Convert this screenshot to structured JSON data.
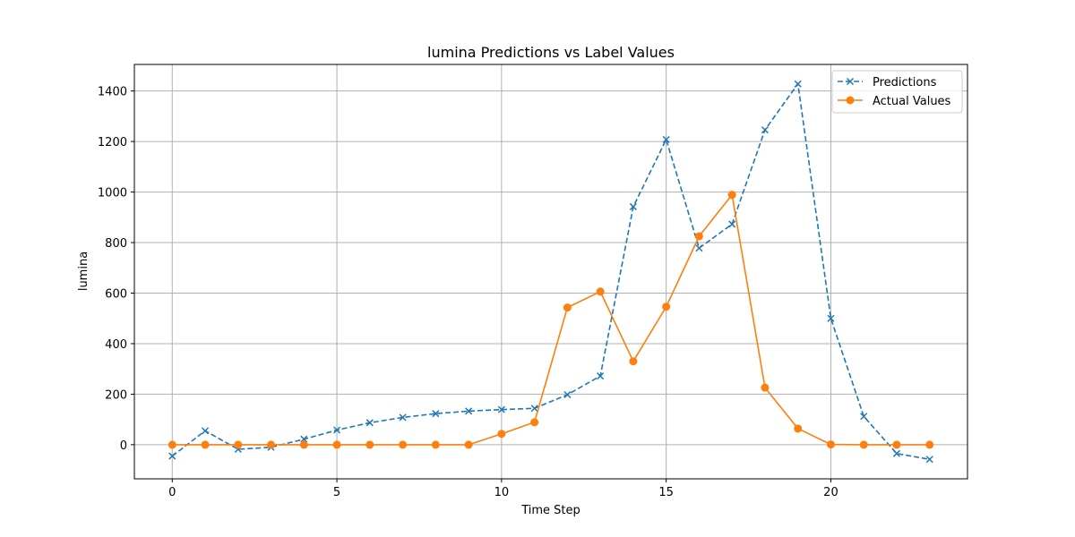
{
  "chart_data": {
    "type": "line",
    "title": "lumina Predictions vs Label Values",
    "xlabel": "Time Step",
    "ylabel": "lumina",
    "x": [
      0,
      1,
      2,
      3,
      4,
      5,
      6,
      7,
      8,
      9,
      10,
      11,
      12,
      13,
      14,
      15,
      16,
      17,
      18,
      19,
      20,
      21,
      22,
      23
    ],
    "xlim": [
      -1.15,
      24.15
    ],
    "ylim": [
      -135,
      1505
    ],
    "xticks": [
      0,
      5,
      10,
      15,
      20
    ],
    "yticks": [
      0,
      200,
      400,
      600,
      800,
      1000,
      1200,
      1400
    ],
    "grid": true,
    "legend_position": "top-right",
    "series": [
      {
        "name": "Predictions",
        "color": "#1f77b4",
        "linestyle": "dashed",
        "marker": "x",
        "values": [
          -45,
          55,
          -18,
          -10,
          22,
          58,
          87,
          108,
          123,
          133,
          139,
          144,
          198,
          272,
          942,
          1208,
          778,
          873,
          1246,
          1428,
          500,
          112,
          -35,
          -58
        ]
      },
      {
        "name": "Actual Values",
        "color": "#ff7f0e",
        "linestyle": "solid",
        "marker": "circle",
        "values": [
          0,
          0,
          0,
          0,
          0,
          0,
          0,
          0,
          0,
          0,
          43,
          89,
          543,
          606,
          330,
          546,
          825,
          989,
          226,
          64,
          1,
          0,
          0,
          0
        ]
      }
    ]
  }
}
